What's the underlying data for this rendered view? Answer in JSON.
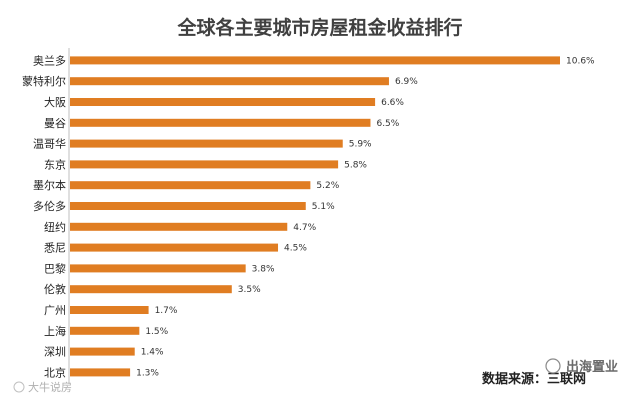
{
  "chart_data": {
    "type": "bar",
    "orientation": "horizontal",
    "title": "全球各主要城市房屋租金收益排行",
    "categories": [
      "奥兰多",
      "蒙特利尔",
      "大阪",
      "曼谷",
      "温哥华",
      "东京",
      "墨尔本",
      "多伦多",
      "纽约",
      "悉尼",
      "巴黎",
      "伦敦",
      "广州",
      "上海",
      "深圳",
      "北京"
    ],
    "values": [
      10.6,
      6.9,
      6.6,
      6.5,
      5.9,
      5.8,
      5.2,
      5.1,
      4.7,
      4.5,
      3.8,
      3.5,
      1.7,
      1.5,
      1.4,
      1.3
    ],
    "value_labels": [
      "10.6%",
      "6.9%",
      "6.6%",
      "6.5%",
      "5.9%",
      "5.8%",
      "5.2%",
      "5.1%",
      "4.7%",
      "4.5%",
      "3.8%",
      "3.5%",
      "1.7%",
      "1.5%",
      "1.4%",
      "1.3%"
    ],
    "xlim": [
      0,
      10.6
    ],
    "xlabel": "",
    "ylabel": "",
    "grid": false,
    "legend": "none",
    "bar_color": "#E07D22"
  },
  "source_text": "数据来源：三联网",
  "watermark_left": "大牛说房",
  "watermark_right": "出海置业"
}
